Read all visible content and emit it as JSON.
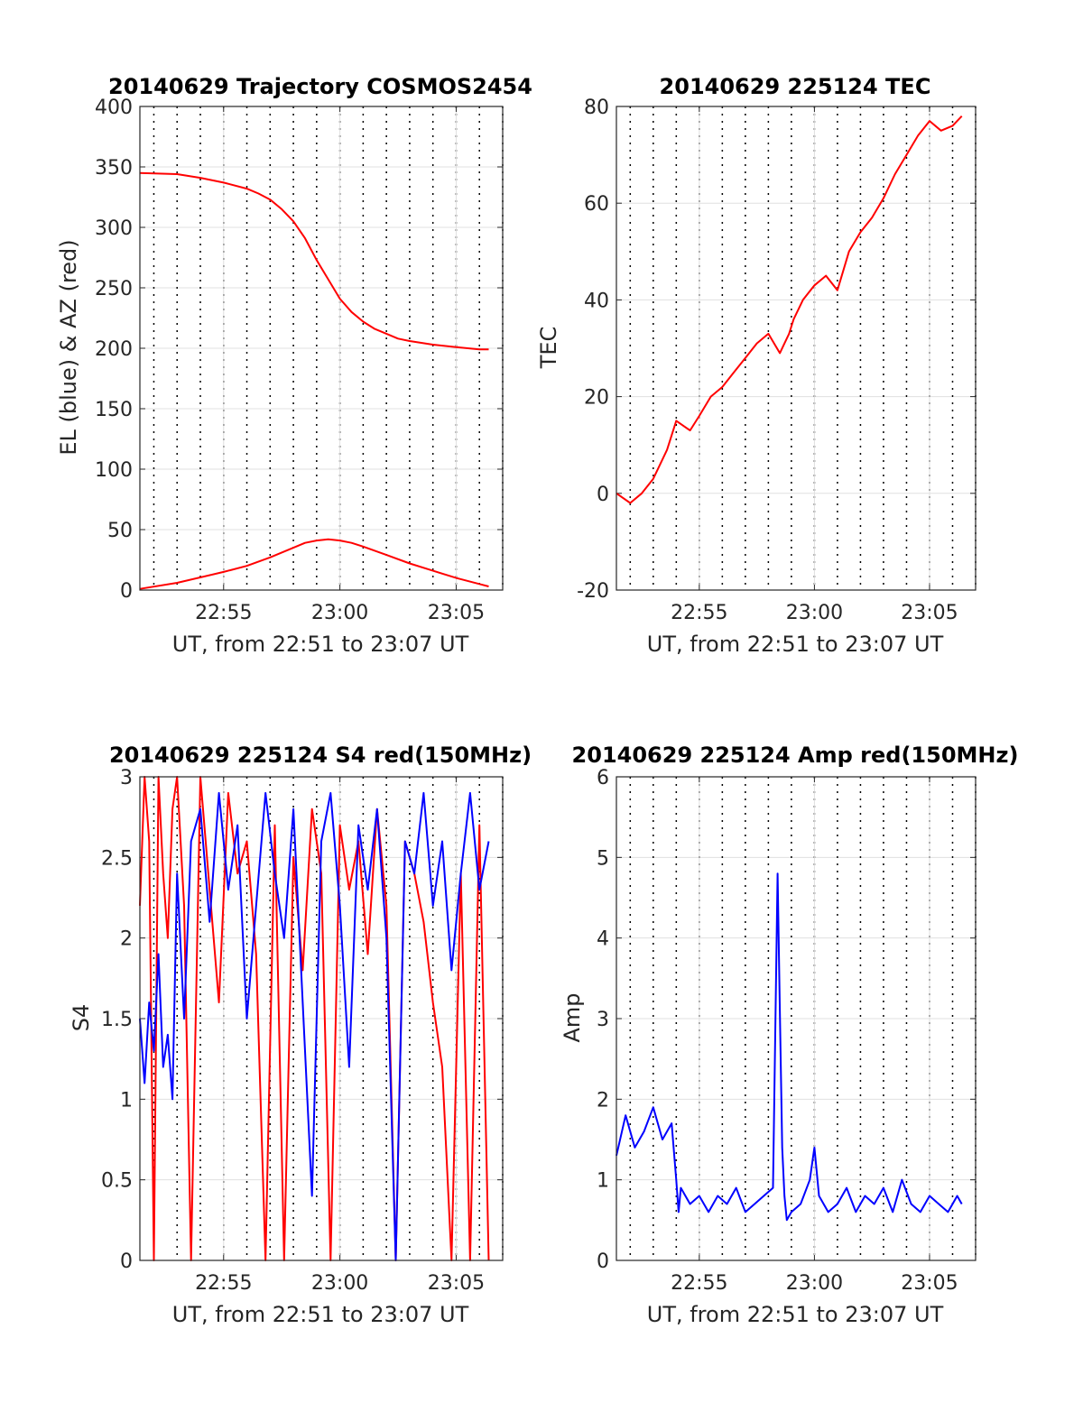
{
  "colors": {
    "azimuth": "#ff0000",
    "elevation": "#0000ff",
    "tec": "#ff0000",
    "s4_red": "#ff0000",
    "s4_blue": "#0000ff",
    "amp": "#0000ff",
    "grid": "#e0e0e0",
    "axis": "#262626",
    "vertical_marker": "#000000"
  },
  "chart_data": [
    {
      "type": "line",
      "title": "20140629 Trajectory COSMOS2454",
      "xlabel": "UT, from 22:51 to 23:07 UT",
      "ylabel": "EL (blue) & AZ (red)",
      "xlim": [
        "22:51:24",
        "23:07:00"
      ],
      "ylim": [
        0,
        400
      ],
      "xticks": [
        "22:55",
        "23:00",
        "23:05"
      ],
      "yticks": [
        "0",
        "50",
        "100",
        "150",
        "200",
        "250",
        "300",
        "350",
        "400"
      ],
      "grid": true,
      "vertical_markers": "dotted lines every 1 min",
      "series": [
        {
          "key": "az",
          "x_minutes_after_2251": [
            0.4,
            2,
            3,
            4,
            5,
            5.5,
            6,
            6.5,
            7,
            7.5,
            8,
            8.5,
            9,
            9.5,
            10,
            10.5,
            11,
            11.5,
            12,
            13,
            14,
            15,
            15.4
          ],
          "values": [
            345,
            344,
            341,
            337,
            332,
            328,
            323,
            315,
            305,
            291,
            273,
            257,
            241,
            230,
            222,
            216,
            212,
            208,
            206,
            203,
            201,
            199,
            199
          ]
        },
        {
          "key": "el",
          "x_minutes_after_2251": [
            0.4,
            2,
            4,
            5,
            6,
            7,
            7.5,
            8,
            8.5,
            9,
            9.5,
            10,
            11,
            12,
            13,
            14,
            15,
            15.4
          ],
          "values": [
            1,
            6,
            15,
            20,
            27,
            35,
            39,
            41,
            42,
            41,
            39,
            36,
            29,
            22,
            16,
            10,
            5,
            3
          ]
        }
      ]
    },
    {
      "type": "line",
      "title": "20140629 225124 TEC",
      "xlabel": "UT, from 22:51 to 23:07 UT",
      "ylabel": "TEC",
      "xlim": [
        "22:51:24",
        "23:07:00"
      ],
      "ylim": [
        -20,
        80
      ],
      "xticks": [
        "22:55",
        "23:00",
        "23:05"
      ],
      "yticks": [
        "-20",
        "0",
        "20",
        "40",
        "60",
        "80"
      ],
      "grid": true,
      "vertical_markers": "dotted lines every 1 min",
      "series": [
        {
          "key": "tec",
          "x_minutes_after_2251": [
            0.4,
            1.0,
            1.5,
            2.0,
            2.6,
            3.0,
            3.6,
            4.0,
            4.5,
            5.0,
            5.5,
            6.0,
            6.5,
            7.0,
            7.5,
            7.9,
            8.1,
            8.5,
            9.0,
            9.5,
            10.0,
            10.5,
            11.0,
            11.5,
            12.0,
            12.5,
            13.0,
            13.5,
            14.0,
            14.5,
            15.0,
            15.4
          ],
          "values": [
            0,
            -2,
            0,
            3,
            9,
            15,
            13,
            16,
            20,
            22,
            25,
            28,
            31,
            33,
            29,
            33,
            36,
            40,
            43,
            45,
            42,
            50,
            54,
            57,
            61,
            66,
            70,
            74,
            77,
            75,
            76,
            78
          ]
        }
      ]
    },
    {
      "type": "line",
      "title": "20140629 225124 S4 red(150MHz)",
      "xlabel": "UT, from 22:51 to 23:07 UT",
      "ylabel": "S4",
      "xlim": [
        "22:51:24",
        "23:07:00"
      ],
      "ylim": [
        0,
        3
      ],
      "xticks": [
        "22:55",
        "23:00",
        "23:05"
      ],
      "yticks": [
        "0",
        "0.5",
        "1",
        "1.5",
        "2",
        "2.5",
        "3"
      ],
      "grid": true,
      "vertical_markers": "dotted lines every 1 min",
      "series": [
        {
          "key": "s4_red",
          "x_minutes_after_2251": [
            0.4,
            0.6,
            0.8,
            1.0,
            1.2,
            1.4,
            1.6,
            1.8,
            2.0,
            2.3,
            2.6,
            3.0,
            3.4,
            3.8,
            4.2,
            4.6,
            5.0,
            5.4,
            5.8,
            6.2,
            6.6,
            7.0,
            7.4,
            7.8,
            8.2,
            8.6,
            9.0,
            9.4,
            9.8,
            10.2,
            10.6,
            11.0,
            11.4,
            11.8,
            12.2,
            12.6,
            13.0,
            13.4,
            13.8,
            14.2,
            14.6,
            15.0,
            15.4
          ],
          "values": [
            2.2,
            3.0,
            2.6,
            0.0,
            3.0,
            2.4,
            2.0,
            2.8,
            3.0,
            2.2,
            0.0,
            3.0,
            2.3,
            1.6,
            2.9,
            2.4,
            2.6,
            1.9,
            0.0,
            2.7,
            0.0,
            2.5,
            1.8,
            2.8,
            2.4,
            0.0,
            2.7,
            2.3,
            2.6,
            1.9,
            2.8,
            2.2,
            0.0,
            2.6,
            2.4,
            2.1,
            1.6,
            1.2,
            0.0,
            2.4,
            0.0,
            2.7,
            0.0
          ]
        },
        {
          "key": "s4_blue",
          "x_minutes_after_2251": [
            0.4,
            0.6,
            0.8,
            1.0,
            1.2,
            1.4,
            1.6,
            1.8,
            2.0,
            2.3,
            2.6,
            3.0,
            3.4,
            3.8,
            4.2,
            4.6,
            5.0,
            5.4,
            5.8,
            6.2,
            6.6,
            7.0,
            7.4,
            7.8,
            8.2,
            8.6,
            9.0,
            9.4,
            9.8,
            10.2,
            10.6,
            11.0,
            11.4,
            11.8,
            12.2,
            12.6,
            13.0,
            13.4,
            13.8,
            14.2,
            14.6,
            15.0,
            15.4
          ],
          "values": [
            1.5,
            1.1,
            1.6,
            1.3,
            1.9,
            1.2,
            1.4,
            1.0,
            2.4,
            1.5,
            2.6,
            2.8,
            2.1,
            2.9,
            2.3,
            2.7,
            1.5,
            2.2,
            2.9,
            2.4,
            2.0,
            2.8,
            1.6,
            0.4,
            2.6,
            2.9,
            2.2,
            1.2,
            2.7,
            2.3,
            2.8,
            2.0,
            0.0,
            2.6,
            2.4,
            2.9,
            2.2,
            2.6,
            1.8,
            2.4,
            2.9,
            2.3,
            2.6
          ]
        }
      ]
    },
    {
      "type": "line",
      "title": "20140629 225124 Amp red(150MHz)",
      "xlabel": "UT, from 22:51 to 23:07 UT",
      "ylabel": "Amp",
      "xlim": [
        "22:51:24",
        "23:07:00"
      ],
      "ylim": [
        0,
        6
      ],
      "xticks": [
        "22:55",
        "23:00",
        "23:05"
      ],
      "yticks": [
        "0",
        "1",
        "2",
        "3",
        "4",
        "5",
        "6"
      ],
      "grid": true,
      "vertical_markers": "dotted lines every 1 min",
      "series": [
        {
          "key": "amp",
          "x_minutes_after_2251": [
            0.4,
            0.8,
            1.2,
            1.6,
            2.0,
            2.4,
            2.8,
            3.0,
            3.1,
            3.2,
            3.6,
            4.0,
            4.4,
            4.8,
            5.2,
            5.6,
            6.0,
            6.4,
            6.8,
            7.2,
            7.4,
            7.5,
            7.6,
            7.7,
            7.8,
            8.0,
            8.4,
            8.8,
            9.0,
            9.2,
            9.6,
            10.0,
            10.4,
            10.8,
            11.2,
            11.6,
            12.0,
            12.4,
            12.8,
            13.2,
            13.6,
            14.0,
            14.4,
            14.8,
            15.2,
            15.4
          ],
          "values": [
            1.3,
            1.8,
            1.4,
            1.6,
            1.9,
            1.5,
            1.7,
            1.0,
            0.6,
            0.9,
            0.7,
            0.8,
            0.6,
            0.8,
            0.7,
            0.9,
            0.6,
            0.7,
            0.8,
            0.9,
            4.8,
            3.1,
            1.4,
            0.8,
            0.5,
            0.6,
            0.7,
            1.0,
            1.4,
            0.8,
            0.6,
            0.7,
            0.9,
            0.6,
            0.8,
            0.7,
            0.9,
            0.6,
            1.0,
            0.7,
            0.6,
            0.8,
            0.7,
            0.6,
            0.8,
            0.7
          ]
        }
      ]
    }
  ]
}
